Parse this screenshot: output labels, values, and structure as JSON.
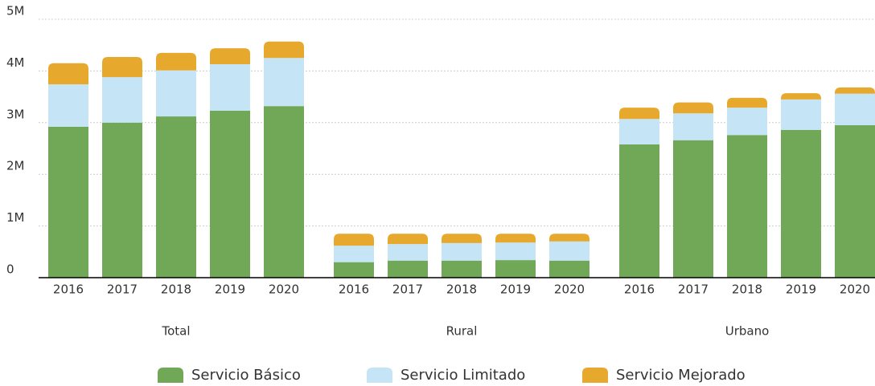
{
  "chart_data": {
    "type": "stacked_bar",
    "groups": [
      "Total",
      "Rural",
      "Urbano"
    ],
    "categories": [
      "2016",
      "2017",
      "2018",
      "2019",
      "2020",
      "2016",
      "2017",
      "2018",
      "2019",
      "2020",
      "2016",
      "2017",
      "2018",
      "2019",
      "2020"
    ],
    "series": [
      {
        "name": "Servicio Básico",
        "color": "#70a857",
        "values": [
          2920000,
          3000000,
          3120000,
          3230000,
          3320000,
          300000,
          330000,
          330000,
          340000,
          330000,
          2580000,
          2660000,
          2760000,
          2860000,
          2950000
        ]
      },
      {
        "name": "Servicio Limitado",
        "color": "#c5e5f6",
        "values": [
          820000,
          880000,
          890000,
          900000,
          930000,
          320000,
          320000,
          340000,
          340000,
          370000,
          490000,
          520000,
          530000,
          590000,
          610000
        ]
      },
      {
        "name": "Servicio Mejorado",
        "color": "#e6a92e",
        "values": [
          410000,
          390000,
          340000,
          310000,
          320000,
          230000,
          200000,
          180000,
          170000,
          150000,
          220000,
          210000,
          190000,
          120000,
          120000
        ]
      }
    ],
    "ylim": [
      0,
      5000000
    ],
    "yticks": [
      0,
      {
        "value": 1000000,
        "label": "1M"
      },
      {
        "value": 2000000,
        "label": "2M"
      },
      {
        "value": 3000000,
        "label": "3M"
      },
      {
        "value": 4000000,
        "label": "4M"
      },
      {
        "value": 5000000,
        "label": "5M"
      }
    ],
    "grid": true,
    "legend": "bottom"
  }
}
